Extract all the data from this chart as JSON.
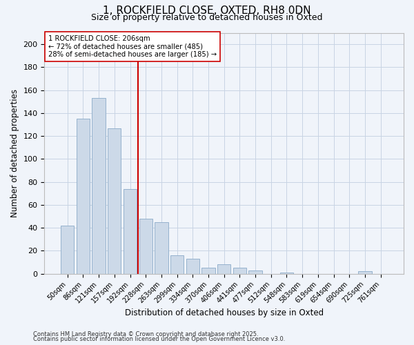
{
  "title": "1, ROCKFIELD CLOSE, OXTED, RH8 0DN",
  "subtitle": "Size of property relative to detached houses in Oxted",
  "xlabel": "Distribution of detached houses by size in Oxted",
  "ylabel": "Number of detached properties",
  "bar_labels": [
    "50sqm",
    "86sqm",
    "121sqm",
    "157sqm",
    "192sqm",
    "228sqm",
    "263sqm",
    "299sqm",
    "334sqm",
    "370sqm",
    "406sqm",
    "441sqm",
    "477sqm",
    "512sqm",
    "548sqm",
    "583sqm",
    "619sqm",
    "654sqm",
    "690sqm",
    "725sqm",
    "761sqm"
  ],
  "bar_values": [
    42,
    135,
    153,
    127,
    74,
    48,
    45,
    16,
    13,
    5,
    8,
    5,
    3,
    0,
    1,
    0,
    0,
    0,
    0,
    2,
    0
  ],
  "bar_color": "#ccd9e8",
  "bar_edge_color": "#8aaac8",
  "vline_x": 4.5,
  "vline_color": "#cc0000",
  "annotation_title": "1 ROCKFIELD CLOSE: 206sqm",
  "annotation_line1": "← 72% of detached houses are smaller (485)",
  "annotation_line2": "28% of semi-detached houses are larger (185) →",
  "annotation_box_color": "#ffffff",
  "annotation_box_edge": "#cc0000",
  "ylim": [
    0,
    210
  ],
  "yticks": [
    0,
    20,
    40,
    60,
    80,
    100,
    120,
    140,
    160,
    180,
    200
  ],
  "footer1": "Contains HM Land Registry data © Crown copyright and database right 2025.",
  "footer2": "Contains public sector information licensed under the Open Government Licence v3.0.",
  "bg_color": "#f0f4fa",
  "grid_color": "#c8d4e4"
}
